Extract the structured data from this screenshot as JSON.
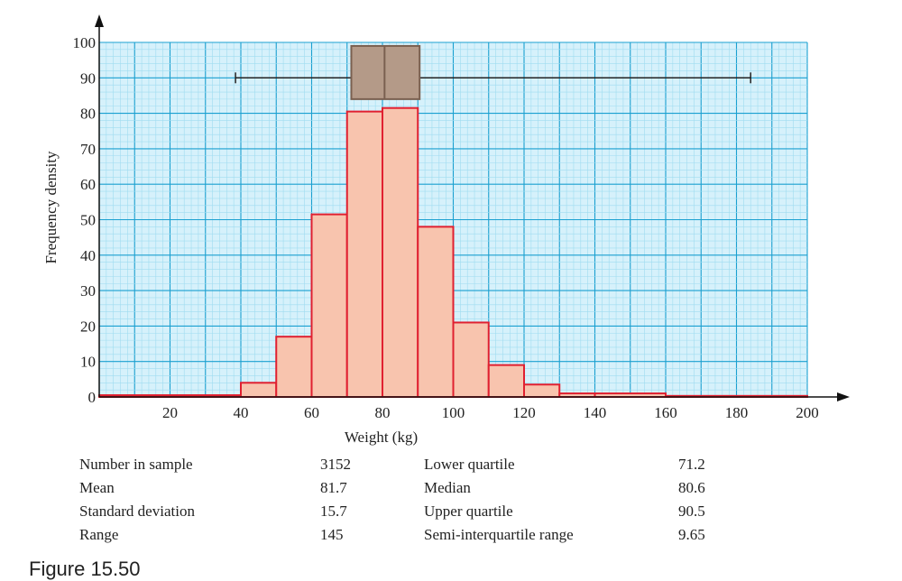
{
  "chart_data": {
    "type": "bar",
    "subtype": "histogram with box plot",
    "xlabel": "Weight (kg)",
    "ylabel": "Frequency density",
    "xlim": [
      0,
      200
    ],
    "ylim": [
      0,
      100
    ],
    "xticks": [
      20,
      40,
      60,
      80,
      100,
      120,
      140,
      160,
      180,
      200
    ],
    "yticks": [
      0,
      10,
      20,
      30,
      40,
      50,
      60,
      70,
      80,
      90,
      100
    ],
    "grid": true,
    "bins": [
      {
        "from": 0,
        "to": 40,
        "value": 0.5
      },
      {
        "from": 40,
        "to": 50,
        "value": 4
      },
      {
        "from": 50,
        "to": 60,
        "value": 17
      },
      {
        "from": 60,
        "to": 70,
        "value": 51.5
      },
      {
        "from": 70,
        "to": 80,
        "value": 80.5
      },
      {
        "from": 80,
        "to": 90,
        "value": 81.5
      },
      {
        "from": 90,
        "to": 100,
        "value": 48
      },
      {
        "from": 100,
        "to": 110,
        "value": 21
      },
      {
        "from": 110,
        "to": 120,
        "value": 9
      },
      {
        "from": 120,
        "to": 130,
        "value": 3.5
      },
      {
        "from": 130,
        "to": 140,
        "value": 1
      },
      {
        "from": 140,
        "to": 160,
        "value": 1
      },
      {
        "from": 160,
        "to": 200,
        "value": 0.3
      }
    ],
    "boxplot": {
      "min": 38.5,
      "q1": 71.2,
      "median": 80.6,
      "q3": 90.5,
      "max": 184,
      "level": 90,
      "box_bottom": 84,
      "box_top": 99
    },
    "colors": {
      "grid_major": "#1aa0d0",
      "grid_minor": "#9fdcf0",
      "background": "#d6f1fb",
      "bar_fill": "#f8c4ae",
      "bar_edge": "#e02030",
      "box_fill": "#b49a88",
      "box_edge": "#7a6050"
    }
  },
  "stats": {
    "left": [
      {
        "label": "Number in sample",
        "value": "3152"
      },
      {
        "label": "Mean",
        "value": "81.7"
      },
      {
        "label": "Standard deviation",
        "value": "15.7"
      },
      {
        "label": "Range",
        "value": "145"
      }
    ],
    "right": [
      {
        "label": "Lower quartile",
        "value": "71.2"
      },
      {
        "label": "Median",
        "value": "80.6"
      },
      {
        "label": "Upper quartile",
        "value": "90.5"
      },
      {
        "label": "Semi-interquartile range",
        "value": "9.65"
      }
    ]
  },
  "caption": "Figure 15.50"
}
